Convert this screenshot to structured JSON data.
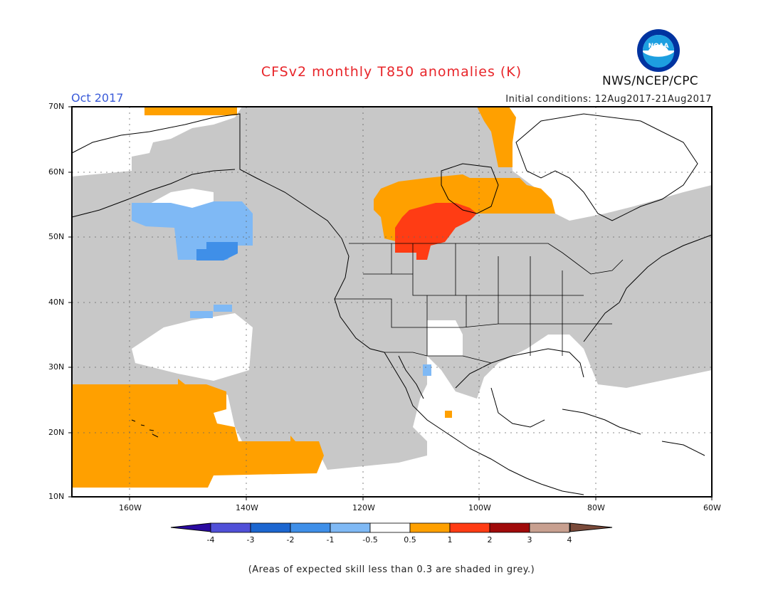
{
  "header": {
    "title": "CFSv2 monthly T850 anomalies (K)",
    "month": "Oct 2017",
    "initial_conditions": "Initial conditions: 12Aug2017-21Aug2017",
    "agency": "NWS/NCEP/CPC",
    "logo_icon": "noaa-logo-icon",
    "logo_text": "NOAA"
  },
  "map": {
    "lat_labels": [
      "70N",
      "60N",
      "50N",
      "40N",
      "30N",
      "20N",
      "10N"
    ],
    "lon_labels": [
      "160W",
      "140W",
      "120W",
      "100W",
      "80W",
      "60W"
    ],
    "colors": {
      "grey_low_skill": "#c8c8c8",
      "land_outline": "#000000",
      "neg_0_5_to_1": "#7fb9f5",
      "neg_1_to_2": "#3f8fe8",
      "pos_0_5_to_1": "#ffa000",
      "pos_1_to_2": "#ff3c14"
    }
  },
  "colorbar": {
    "labels": [
      "-4",
      "-3",
      "-2",
      "-1",
      "-0.5",
      "0.5",
      "1",
      "2",
      "3",
      "4"
    ],
    "colors": [
      "#2a0aa0",
      "#5050d8",
      "#1c66d0",
      "#3f8fe8",
      "#7fb9f5",
      "#ffffff",
      "#ffa000",
      "#ff3c14",
      "#a00a0a",
      "#c8a090",
      "#7a4a3a"
    ]
  },
  "footnote": "(Areas of expected skill less than 0.3 are shaded in grey.)"
}
